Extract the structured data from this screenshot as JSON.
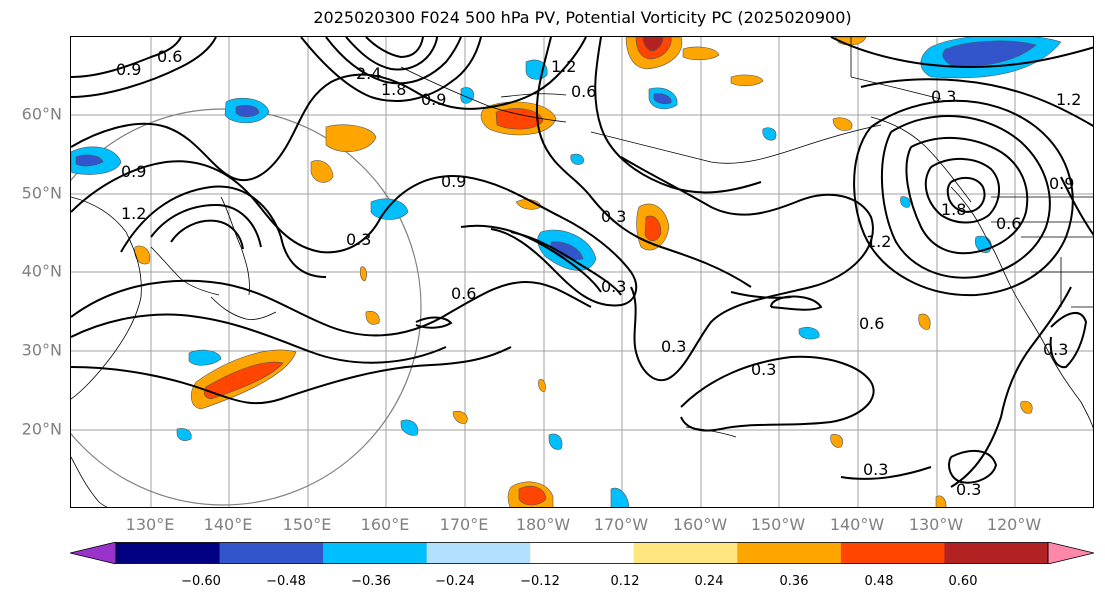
{
  "title": "2025020300 F024 500 hPa PV, Potential Vorticity PC (2025020900)",
  "lat_labels": [
    "60°N",
    "50°N",
    "40°N",
    "30°N",
    "20°N"
  ],
  "lon_labels": [
    "130°E",
    "140°E",
    "150°E",
    "160°E",
    "170°E",
    "180°W",
    "170°W",
    "160°W",
    "150°W",
    "140°W",
    "130°W",
    "120°W"
  ],
  "contour_labels": [
    {
      "text": "0.9",
      "name": "contour-label-0.9-nw"
    },
    {
      "text": "0.6",
      "name": "contour-label-0.6-nw"
    },
    {
      "text": "2.4",
      "name": "contour-label-2.4"
    },
    {
      "text": "1.8",
      "name": "contour-label-1.8-kamchatka"
    },
    {
      "text": "0.9",
      "name": "contour-label-0.9-bering"
    },
    {
      "text": "1.2",
      "name": "contour-label-1.2-aleutian"
    },
    {
      "text": "0.6",
      "name": "contour-label-0.6-aleutian"
    },
    {
      "text": "0.9",
      "name": "contour-label-0.9-japan"
    },
    {
      "text": "1.2",
      "name": "contour-label-1.2-japan"
    },
    {
      "text": "0.3",
      "name": "contour-label-0.3-japan"
    },
    {
      "text": "0.9",
      "name": "contour-label-0.9-central"
    },
    {
      "text": "0.3",
      "name": "contour-label-0.3-central"
    },
    {
      "text": "0.6",
      "name": "contour-label-0.6-dateline"
    },
    {
      "text": "0.3",
      "name": "contour-label-0.3-dateline"
    },
    {
      "text": "0.3",
      "name": "contour-label-0.3-subtropic"
    },
    {
      "text": "0.3",
      "name": "contour-label-0.3-east"
    },
    {
      "text": "0.6",
      "name": "contour-label-0.6-east"
    },
    {
      "text": "1.8",
      "name": "contour-label-1.8-gulf"
    },
    {
      "text": "1.2",
      "name": "contour-label-1.2-gulf"
    },
    {
      "text": "0.6",
      "name": "contour-label-0.6-coast"
    },
    {
      "text": "0.3",
      "name": "contour-label-0.3-canada"
    },
    {
      "text": "1.2",
      "name": "contour-label-1.2-canada"
    },
    {
      "text": "0.9",
      "name": "contour-label-0.9-canada"
    },
    {
      "text": "0.3",
      "name": "contour-label-0.3-southeast"
    },
    {
      "text": "0.3",
      "name": "contour-label-0.3-south"
    },
    {
      "text": "0.3",
      "name": "contour-label-0.3-california"
    }
  ],
  "colorbar": {
    "colors": [
      "#9933cc",
      "#000080",
      "#3355cc",
      "#00bfff",
      "#b3e0ff",
      "#ffffff",
      "#ffe680",
      "#ffa500",
      "#ff4500",
      "#b22222",
      "#ff88aa"
    ],
    "ticks": [
      "−0.60",
      "−0.48",
      "−0.36",
      "−0.24",
      "−0.12",
      "0.12",
      "0.24",
      "0.36",
      "0.48",
      "0.60"
    ]
  }
}
